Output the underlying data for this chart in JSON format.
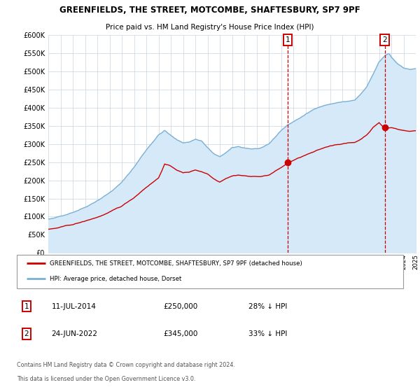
{
  "title": "GREENFIELDS, THE STREET, MOTCOMBE, SHAFTESBURY, SP7 9PF",
  "subtitle": "Price paid vs. HM Land Registry's House Price Index (HPI)",
  "legend_line1": "GREENFIELDS, THE STREET, MOTCOMBE, SHAFTESBURY, SP7 9PF (detached house)",
  "legend_line2": "HPI: Average price, detached house, Dorset",
  "annotation1_label": "1",
  "annotation1_date": "11-JUL-2014",
  "annotation1_price": "£250,000",
  "annotation1_hpi": "28% ↓ HPI",
  "annotation2_label": "2",
  "annotation2_date": "24-JUN-2022",
  "annotation2_price": "£345,000",
  "annotation2_hpi": "33% ↓ HPI",
  "footnote_line1": "Contains HM Land Registry data © Crown copyright and database right 2024.",
  "footnote_line2": "This data is licensed under the Open Government Licence v3.0.",
  "hpi_color": "#a8cce8",
  "hpi_line_color": "#7ab0d4",
  "price_color": "#cc0000",
  "marker_color": "#cc0000",
  "vline_color": "#cc0000",
  "bg_fill_color": "#d6e9f8",
  "grid_color": "#c8d4e0",
  "event1_x": 2014.53,
  "event1_y_price": 250000,
  "event2_x": 2022.47,
  "event2_y_price": 345000,
  "ylim_min": 0,
  "ylim_max": 600000,
  "xlim_min": 1995,
  "xlim_max": 2025
}
